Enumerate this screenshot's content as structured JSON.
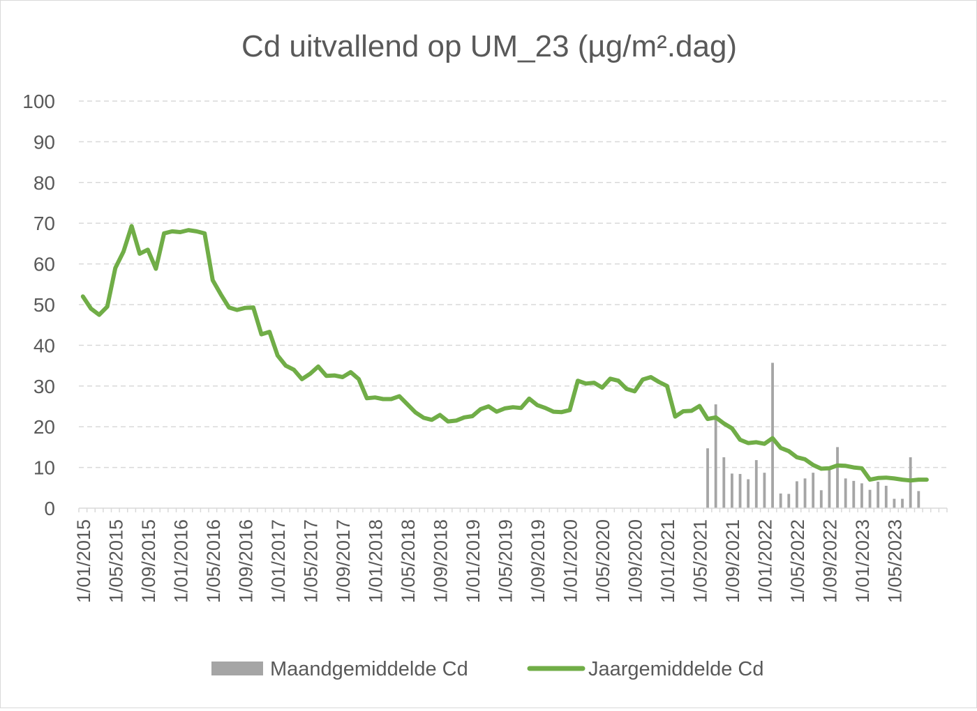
{
  "chart_data": {
    "type": "bar+line",
    "title": "Cd uitvallend op UM_23 (µg/m².dag)",
    "xlabel": "",
    "ylabel": "",
    "ylim": [
      0,
      100
    ],
    "yticks": [
      "0",
      "10",
      "20",
      "30",
      "40",
      "50",
      "60",
      "70",
      "80",
      "90",
      "100"
    ],
    "x_start": "2015-01",
    "x_end": "2023-11",
    "x_tick_labels": [
      "1/01/2015",
      "1/05/2015",
      "1/09/2015",
      "1/01/2016",
      "1/05/2016",
      "1/09/2016",
      "1/01/2017",
      "1/05/2017",
      "1/09/2017",
      "1/01/2018",
      "1/05/2018",
      "1/09/2018",
      "1/01/2019",
      "1/05/2019",
      "1/09/2019",
      "1/01/2020",
      "1/05/2020",
      "1/09/2020",
      "1/01/2021",
      "1/05/2021",
      "1/09/2021",
      "1/01/2022",
      "1/05/2022",
      "1/09/2022",
      "1/01/2023",
      "1/05/2023"
    ],
    "grid": "horizontal dashed",
    "legend_position": "bottom",
    "series": [
      {
        "name": "Maandgemiddelde Cd",
        "type": "bar",
        "color": "#a5a5a5",
        "start": "2021-06",
        "values": [
          14.7,
          25.5,
          12.5,
          8.5,
          8.4,
          7.1,
          11.8,
          8.7,
          35.7,
          3.6,
          3.5,
          6.6,
          7.3,
          8.7,
          4.4,
          9.8,
          15.0,
          7.3,
          6.7,
          6.1,
          4.5,
          6.5,
          5.5,
          2.3,
          2.3,
          12.5,
          4.2
        ]
      },
      {
        "name": "Jaargemiddelde Cd",
        "type": "line",
        "color": "#70ad47",
        "start": "2015-01",
        "values": [
          52,
          49,
          47.5,
          49.5,
          59,
          63,
          69.3,
          62.5,
          63.5,
          58.8,
          67.5,
          68,
          67.8,
          68.3,
          68,
          67.5,
          56,
          52.5,
          49.3,
          48.7,
          49.2,
          49.3,
          42.7,
          43.3,
          37.5,
          35,
          34,
          31.7,
          33,
          34.8,
          32.5,
          32.6,
          32.2,
          33.4,
          31.7,
          27,
          27.2,
          26.8,
          26.8,
          27.5,
          25.5,
          23.5,
          22.2,
          21.7,
          22.9,
          21.3,
          21.5,
          22.3,
          22.6,
          24.3,
          25,
          23.7,
          24.5,
          24.8,
          24.6,
          26.9,
          25.3,
          24.6,
          23.7,
          23.6,
          24.1,
          31.3,
          30.6,
          30.8,
          29.6,
          31.8,
          31.3,
          29.3,
          28.7,
          31.6,
          32.2,
          31,
          30,
          22.5,
          23.8,
          23.9,
          25.1,
          21.9,
          22.3,
          20.8,
          19.6,
          16.8,
          16,
          16.2,
          15.8,
          17.2,
          14.8,
          14,
          12.5,
          12,
          10.6,
          9.7,
          9.8,
          10.5,
          10.4,
          10,
          9.8,
          7,
          7.4,
          7.5,
          7.3,
          7,
          6.8,
          7,
          7
        ]
      }
    ]
  }
}
